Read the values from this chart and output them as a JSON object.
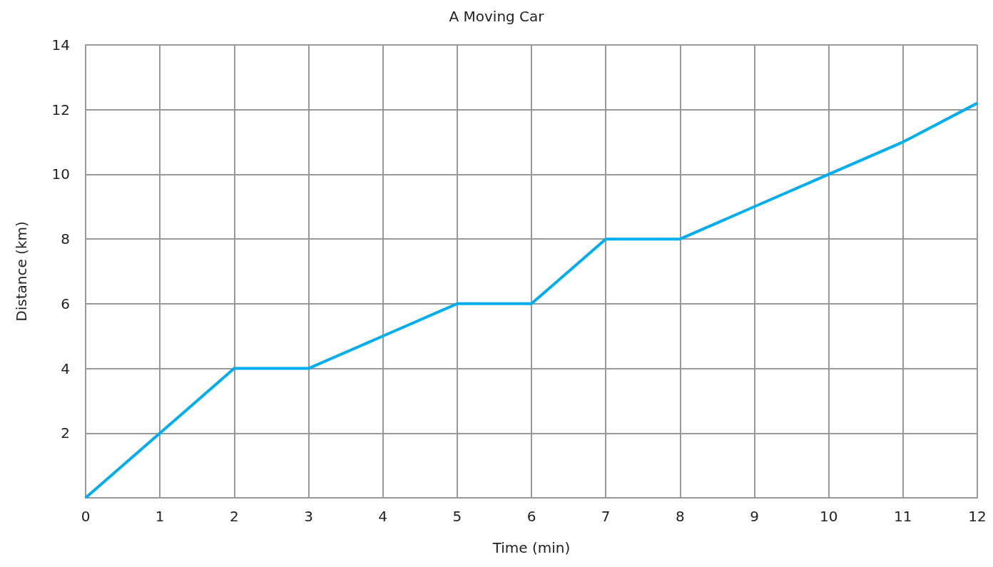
{
  "chart_data": {
    "type": "line",
    "title": "A Moving Car",
    "xlabel": "Time (min)",
    "ylabel": "Distance (km)",
    "x": [
      0,
      1,
      2,
      3,
      4,
      5,
      6,
      7,
      8,
      9,
      10,
      11,
      12
    ],
    "series": [
      {
        "color": "#00aeef",
        "values": [
          0,
          2,
          4,
          4,
          5,
          6,
          6,
          8,
          8,
          9,
          10,
          11,
          12.2
        ]
      }
    ],
    "xlim": [
      0,
      12
    ],
    "xticks": [
      0,
      1,
      2,
      3,
      4,
      5,
      6,
      7,
      8,
      9,
      10,
      11,
      12
    ],
    "ylim": [
      0,
      14
    ],
    "yticks": [
      2,
      4,
      6,
      8,
      10,
      12,
      14
    ],
    "grid": true,
    "marker": "none",
    "line_style": "solid"
  }
}
